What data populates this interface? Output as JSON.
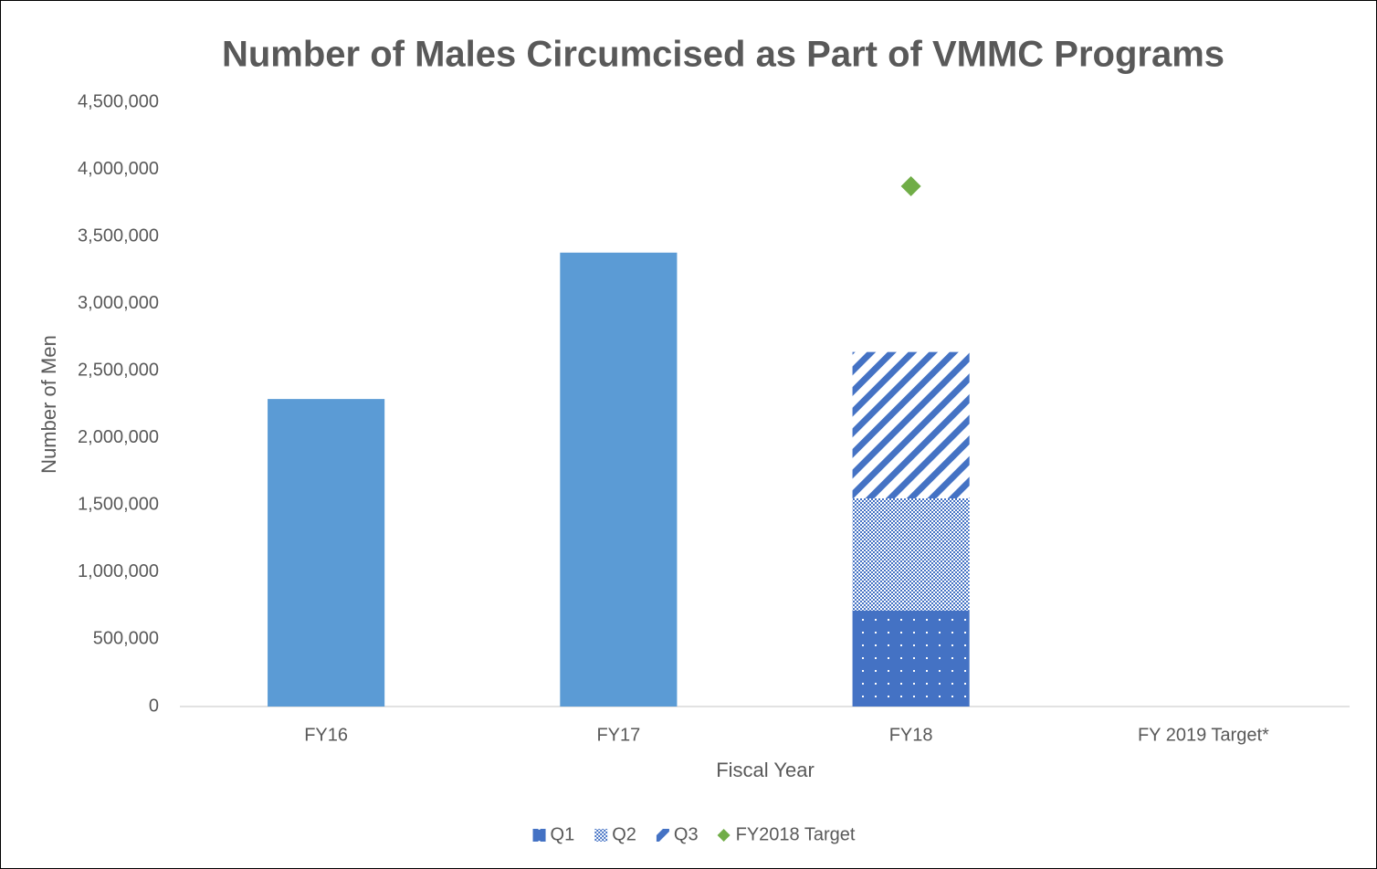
{
  "chart_data": {
    "type": "bar",
    "title": "Number of Males Circumcised as Part of VMMC Programs",
    "x_label": "Fiscal Year",
    "y_label": "Number of Men",
    "categories": [
      "FY16",
      "FY17",
      "FY18",
      "FY 2019 Target*"
    ],
    "series": [
      {
        "color": "#5b9bd5",
        "values": [
          2290000,
          3380000,
          null,
          null
        ]
      },
      {
        "name": "Q1",
        "color": "#4472c4",
        "pattern": "dots",
        "values": [
          null,
          null,
          715000,
          null
        ]
      },
      {
        "name": "Q2",
        "color": "#4472c4",
        "pattern": "checker",
        "values": [
          null,
          null,
          835000,
          null
        ]
      },
      {
        "name": "Q3",
        "color": "#4472c4",
        "pattern": "diagonal",
        "values": [
          null,
          null,
          1090000,
          null
        ]
      },
      {
        "name": "FY2018 Target",
        "color": "#70ad47",
        "type": "scatter",
        "marker": "diamond",
        "values": [
          null,
          null,
          3875000,
          null
        ]
      }
    ],
    "ylim": [
      0,
      4500000
    ],
    "yticks": [
      0,
      {
        "value": 500000,
        "label": "500,000"
      },
      {
        "value": 1000000,
        "label": "1,000,000"
      },
      {
        "value": 1500000,
        "label": "1,500,000"
      },
      {
        "value": 2000000,
        "label": "2,000,000"
      },
      {
        "value": 2500000,
        "label": "2,500,000"
      },
      {
        "value": 3000000,
        "label": "3,000,000"
      },
      {
        "value": 3500000,
        "label": "3,500,000"
      },
      {
        "value": 4000000,
        "label": "4,000,000"
      },
      {
        "value": 4500000,
        "label": "4,500,000"
      }
    ],
    "grid": false,
    "legend": "bottom"
  }
}
